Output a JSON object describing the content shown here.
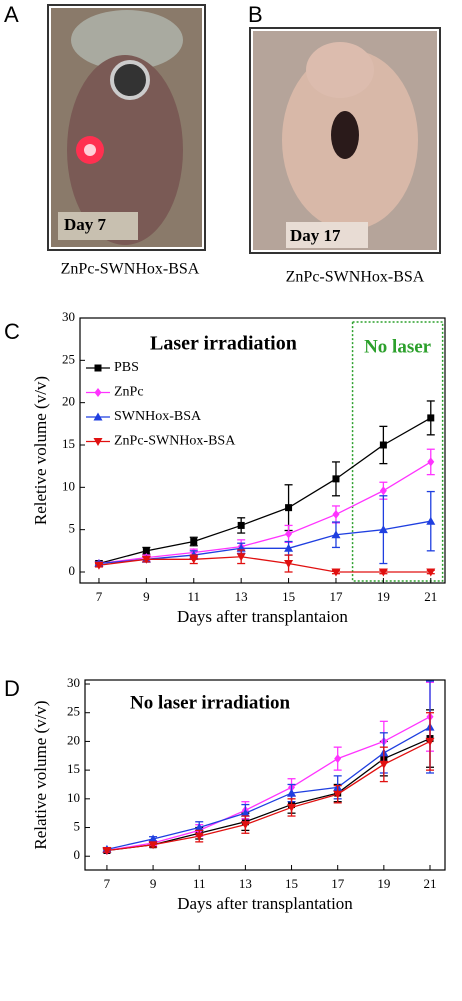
{
  "panel_labels": [
    "A",
    "B",
    "C",
    "D"
  ],
  "photos": [
    {
      "day": "Day 7",
      "caption": "ZnPc-SWNHox-BSA"
    },
    {
      "day": "Day 17",
      "caption": "ZnPc-SWNHox-BSA"
    }
  ],
  "chart_data": [
    {
      "type": "line",
      "xlabel": "Days after transplantaion",
      "ylabel": "Reletive volume (v/v)",
      "annotations": [
        "Laser irradiation"
      ],
      "region": {
        "x": [
          17.7,
          21.5
        ],
        "label": "No laser",
        "color": "#2ca02c"
      },
      "x": [
        7,
        9,
        11,
        13,
        15,
        17,
        19,
        21
      ],
      "xlim": [
        6.2,
        21.6
      ],
      "xticks": [
        7,
        9,
        11,
        13,
        15,
        17,
        19,
        21
      ],
      "ylim": [
        -1.3,
        30
      ],
      "yticks": [
        0,
        5,
        10,
        15,
        20,
        25,
        30
      ],
      "legend": "upper left",
      "series": [
        {
          "name": "PBS",
          "color": "#000000",
          "marker": "square",
          "values": [
            1,
            2.5,
            3.6,
            5.5,
            7.6,
            11,
            15,
            18.2
          ],
          "errors": [
            0.3,
            0.4,
            0.5,
            0.9,
            2.7,
            2,
            2.2,
            2
          ]
        },
        {
          "name": "ZnPc",
          "color": "#ff33ff",
          "marker": "diamond",
          "values": [
            1,
            1.7,
            2.3,
            3,
            4.5,
            6.8,
            9.6,
            13
          ],
          "errors": [
            0.2,
            0.3,
            0.4,
            0.8,
            1,
            1,
            1,
            1.5
          ]
        },
        {
          "name": "SWNHox-BSA",
          "color": "#1f3fe0",
          "marker": "triangle-up",
          "values": [
            1,
            1.5,
            2,
            2.8,
            2.8,
            4.4,
            5,
            6
          ],
          "errors": [
            0.2,
            0.3,
            0.5,
            0.6,
            0.8,
            1.5,
            4,
            3.5
          ]
        },
        {
          "name": "ZnPc-SWNHox-BSA",
          "color": "#e01010",
          "marker": "triangle-down",
          "values": [
            0.8,
            1.5,
            1.5,
            1.8,
            1,
            0,
            0,
            0
          ],
          "errors": [
            0.2,
            0.3,
            0.5,
            0.8,
            1,
            0.2,
            0.2,
            0.2
          ]
        }
      ]
    },
    {
      "type": "line",
      "xlabel": "Days after transplantation",
      "ylabel": "Relative volume (v/v)",
      "annotations": [
        "No laser irradiation"
      ],
      "x": [
        7,
        9,
        11,
        13,
        15,
        17,
        19,
        21
      ],
      "xlim": [
        6.05,
        21.65
      ],
      "xticks": [
        7,
        9,
        11,
        13,
        15,
        17,
        19,
        21
      ],
      "ylim": [
        -2.4,
        30.7
      ],
      "yticks": [
        0,
        5,
        10,
        15,
        20,
        25,
        30
      ],
      "series": [
        {
          "color": "#000000",
          "marker": "square",
          "values": [
            1,
            2,
            4,
            6,
            9,
            11,
            17,
            20.5
          ],
          "errors": [
            0.3,
            0.4,
            1,
            1.5,
            1.5,
            1.5,
            3,
            5
          ]
        },
        {
          "color": "#ff33ff",
          "marker": "diamond",
          "values": [
            1,
            2.3,
            4.5,
            8,
            12,
            17,
            20,
            24.3
          ],
          "errors": [
            0.3,
            0.4,
            1,
            1.5,
            1.5,
            2,
            3.5,
            6
          ]
        },
        {
          "color": "#1f3fe0",
          "marker": "triangle-up",
          "values": [
            1.2,
            3,
            5,
            7.5,
            11,
            12,
            18,
            22.5
          ],
          "errors": [
            0.3,
            0.4,
            1,
            1.5,
            1.5,
            2,
            3.5,
            8
          ]
        },
        {
          "color": "#e01010",
          "marker": "triangle-down",
          "values": [
            1,
            2,
            3.5,
            5.5,
            8.5,
            10.8,
            16,
            20
          ],
          "errors": [
            0.3,
            0.4,
            1,
            1.5,
            1.5,
            1.5,
            3,
            5
          ]
        }
      ]
    }
  ]
}
